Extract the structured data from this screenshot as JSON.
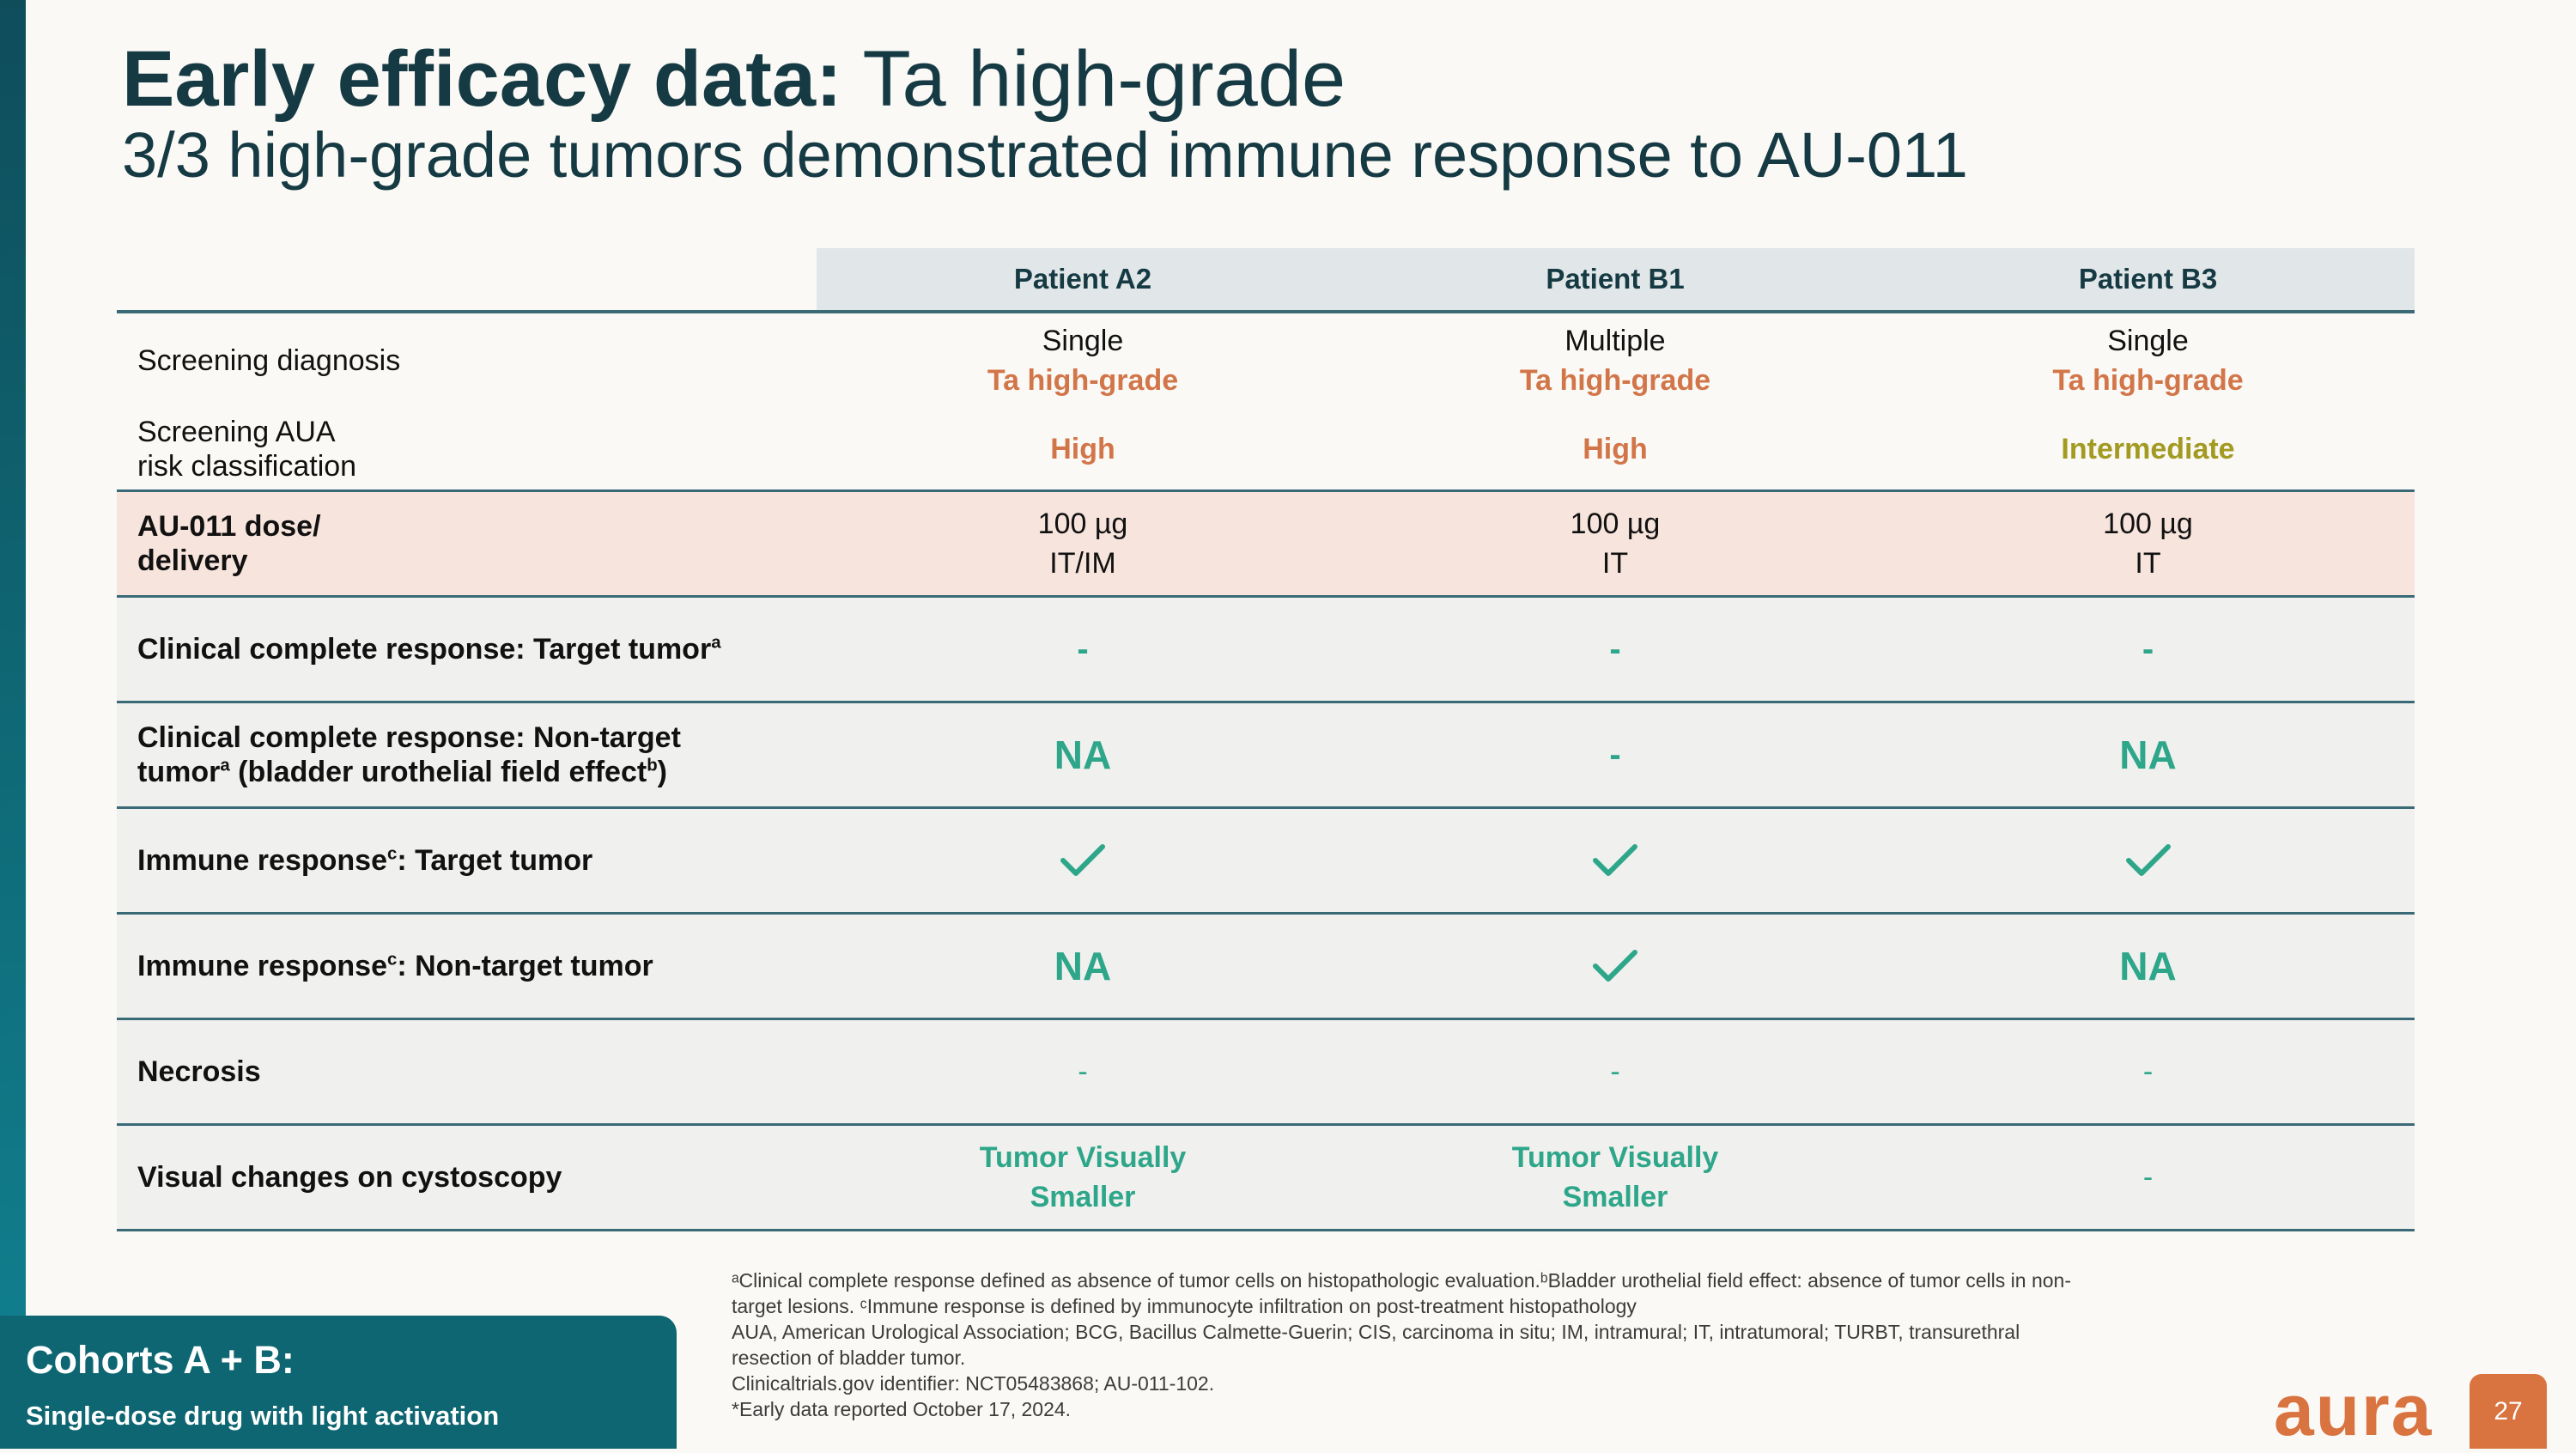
{
  "slide": {
    "title_bold": "Early efficacy data:",
    "title_rest": " Ta high-grade",
    "subtitle": "3/3 high-grade tumors demonstrated immune response to AU-011"
  },
  "table": {
    "headers": [
      "Patient A2",
      "Patient B1",
      "Patient B3"
    ],
    "rows": [
      {
        "label": "Screening diagnosis",
        "cells": [
          {
            "line1": "Single",
            "line2": "Ta high-grade"
          },
          {
            "line1": "Multiple",
            "line2": "Ta high-grade"
          },
          {
            "line1": "Single",
            "line2": "Ta high-grade"
          }
        ]
      },
      {
        "label_line1": "Screening AUA",
        "label_line2": "risk classification",
        "cells": [
          "High",
          "High",
          "Intermediate"
        ]
      },
      {
        "label_line1": "AU-011 dose/",
        "label_line2": "delivery",
        "cells": [
          {
            "line1": "100 µg",
            "line2": "IT/IM"
          },
          {
            "line1": "100 µg",
            "line2": "IT"
          },
          {
            "line1": "100 µg",
            "line2": "IT"
          }
        ]
      },
      {
        "label": "Clinical complete response: Target tumor",
        "label_sup": "a",
        "cells": [
          "-",
          "-",
          "-"
        ]
      },
      {
        "label_line1": "Clinical complete response: Non-target",
        "label_line2a": "tumor",
        "sup_a": "a",
        "label_line2b": " (bladder urothelial field effect",
        "sup_b": "b",
        "label_line2c": ")",
        "cells": [
          "NA",
          "-",
          "NA"
        ]
      },
      {
        "label_a": "Immune response",
        "label_sup": "c",
        "label_b": ": Target tumor",
        "cells": [
          "check-icon",
          "check-icon",
          "check-icon"
        ]
      },
      {
        "label_a": "Immune response",
        "label_sup": "c",
        "label_b": ": Non-target tumor",
        "cells": [
          "NA",
          "check-icon",
          "NA"
        ]
      },
      {
        "label": "Necrosis",
        "cells": [
          "-",
          "-",
          "-"
        ]
      },
      {
        "label": "Visual changes on cystoscopy",
        "cells": [
          {
            "line1": "Tumor Visually",
            "line2": "Smaller"
          },
          {
            "line1": "Tumor Visually",
            "line2": "Smaller"
          },
          "-"
        ]
      }
    ]
  },
  "footnotes": {
    "line1": "ᵃClinical complete response defined as absence of tumor cells on histopathologic evaluation.ᵇBladder urothelial field effect: absence of tumor cells in non-",
    "line2": "target lesions.  ᶜImmune response is defined by immunocyte infiltration on post-treatment histopathology",
    "line3": "AUA, American Urological Association; BCG, Bacillus Calmette-Guerin; CIS, carcinoma in situ; IM, intramural; IT, intratumoral; TURBT, transurethral",
    "line4": "resection of bladder tumor.",
    "line5": "Clinicaltrials.gov identifier: NCT05483868; AU-011-102.",
    "line6": "*Early data reported October 17, 2024."
  },
  "cohort": {
    "title": "Cohorts A + B:",
    "subtitle": "Single-dose drug with light activation"
  },
  "brand": {
    "logo_text": "aura",
    "page_number": "27"
  },
  "colors": {
    "primary": "#163a43",
    "accent_orange": "#d9733f",
    "accent_teal": "#2ea68a",
    "olive": "#a39a22",
    "cohort_bg": "#0e6672",
    "dose_row_bg": "#f7e4dc"
  }
}
